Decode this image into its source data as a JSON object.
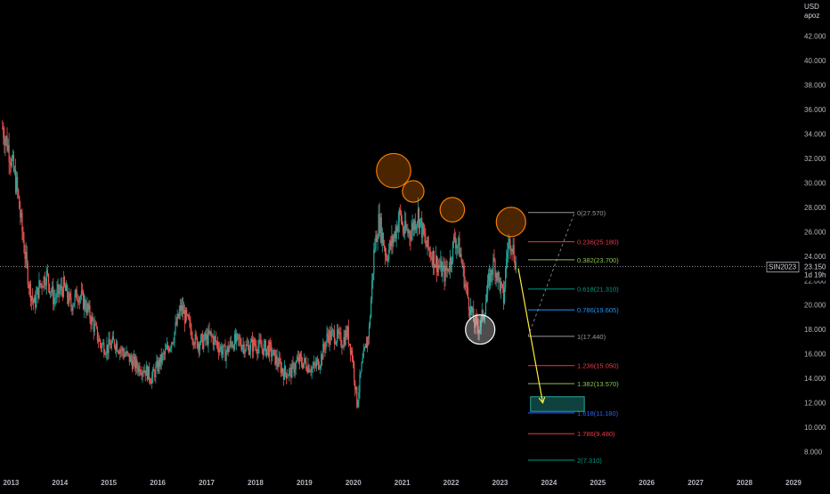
{
  "header": {
    "currency": "USD",
    "unit": "apoz"
  },
  "chart_data": {
    "type": "candlestick",
    "symbol": "SIN2023",
    "last_price": "23.150",
    "countdown": "1d 19h",
    "x_ticks": [
      "2013",
      "2014",
      "2015",
      "2016",
      "2017",
      "2018",
      "2019",
      "2020",
      "2021",
      "2022",
      "2023",
      "2024",
      "2025",
      "2026",
      "2027",
      "2028",
      "2029"
    ],
    "y_ticks": [
      "8.000",
      "10.000",
      "12.000",
      "14.000",
      "16.000",
      "18.000",
      "20.000",
      "22.000",
      "24.000",
      "26.000",
      "28.000",
      "30.000",
      "32.000",
      "34.000",
      "36.000",
      "38.000",
      "40.000",
      "42.000"
    ],
    "ylim": [
      6.0,
      43.5
    ],
    "xlim": [
      2012.9,
      2029.2
    ],
    "grid": false,
    "price_path": [
      [
        2012.95,
        34.5
      ],
      [
        2013.1,
        32.5
      ],
      [
        2013.25,
        29.5
      ],
      [
        2013.4,
        24.5
      ],
      [
        2013.5,
        21.5
      ],
      [
        2013.6,
        20.0
      ],
      [
        2013.7,
        21.5
      ],
      [
        2013.85,
        22.5
      ],
      [
        2014.0,
        20.5
      ],
      [
        2014.2,
        21.5
      ],
      [
        2014.35,
        20.0
      ],
      [
        2014.5,
        21.0
      ],
      [
        2014.65,
        20.0
      ],
      [
        2014.8,
        18.5
      ],
      [
        2014.95,
        16.8
      ],
      [
        2015.1,
        16.5
      ],
      [
        2015.25,
        17.0
      ],
      [
        2015.4,
        16.2
      ],
      [
        2015.55,
        15.6
      ],
      [
        2015.7,
        15.0
      ],
      [
        2015.85,
        14.8
      ],
      [
        2016.0,
        14.0
      ],
      [
        2016.15,
        15.2
      ],
      [
        2016.3,
        16.2
      ],
      [
        2016.45,
        17.5
      ],
      [
        2016.6,
        19.8
      ],
      [
        2016.75,
        18.5
      ],
      [
        2016.9,
        17.0
      ],
      [
        2017.05,
        17.0
      ],
      [
        2017.2,
        17.5
      ],
      [
        2017.35,
        16.8
      ],
      [
        2017.5,
        16.0
      ],
      [
        2017.65,
        17.0
      ],
      [
        2017.8,
        17.0
      ],
      [
        2017.95,
        16.5
      ],
      [
        2018.1,
        16.8
      ],
      [
        2018.25,
        16.5
      ],
      [
        2018.4,
        16.4
      ],
      [
        2018.55,
        15.5
      ],
      [
        2018.7,
        14.5
      ],
      [
        2018.85,
        14.5
      ],
      [
        2019.0,
        15.5
      ],
      [
        2019.15,
        15.2
      ],
      [
        2019.3,
        14.8
      ],
      [
        2019.45,
        15.5
      ],
      [
        2019.6,
        17.5
      ],
      [
        2019.75,
        17.5
      ],
      [
        2019.9,
        17.0
      ],
      [
        2020.0,
        17.8
      ],
      [
        2020.1,
        16.0
      ],
      [
        2020.2,
        12.0
      ],
      [
        2020.3,
        15.0
      ],
      [
        2020.45,
        18.0
      ],
      [
        2020.55,
        24.5
      ],
      [
        2020.65,
        27.0
      ],
      [
        2020.8,
        24.0
      ],
      [
        2020.95,
        25.5
      ],
      [
        2021.08,
        27.5
      ],
      [
        2021.15,
        26.0
      ],
      [
        2021.3,
        26.0
      ],
      [
        2021.45,
        27.5
      ],
      [
        2021.6,
        25.0
      ],
      [
        2021.75,
        24.0
      ],
      [
        2021.9,
        23.0
      ],
      [
        2022.0,
        22.5
      ],
      [
        2022.1,
        23.5
      ],
      [
        2022.2,
        25.5
      ],
      [
        2022.3,
        24.5
      ],
      [
        2022.4,
        22.0
      ],
      [
        2022.5,
        20.0
      ],
      [
        2022.6,
        18.5
      ],
      [
        2022.7,
        18.2
      ],
      [
        2022.8,
        19.5
      ],
      [
        2022.9,
        22.0
      ],
      [
        2023.0,
        23.5
      ],
      [
        2023.1,
        22.0
      ],
      [
        2023.2,
        20.5
      ],
      [
        2023.27,
        24.5
      ],
      [
        2023.35,
        25.5
      ],
      [
        2023.45,
        23.3
      ]
    ],
    "fib_levels": [
      {
        "ratio": "0",
        "price": "27.570",
        "value": 27.57,
        "color": "#9598a1"
      },
      {
        "ratio": "0.236",
        "price": "25.180",
        "value": 25.18,
        "color": "#f23645"
      },
      {
        "ratio": "0.382",
        "price": "23.700",
        "value": 23.7,
        "color": "#8bc34a"
      },
      {
        "ratio": "0.618",
        "price": "21.310",
        "value": 21.31,
        "color": "#089981"
      },
      {
        "ratio": "0.786",
        "price": "19.605",
        "value": 19.605,
        "color": "#2196f3"
      },
      {
        "ratio": "1",
        "price": "17.440",
        "value": 17.44,
        "color": "#9598a1"
      },
      {
        "ratio": "1.236",
        "price": "15.050",
        "value": 15.05,
        "color": "#f23645"
      },
      {
        "ratio": "1.382",
        "price": "13.570",
        "value": 13.57,
        "color": "#8bc34a"
      },
      {
        "ratio": "1.618",
        "price": "11.180",
        "value": 11.18,
        "color": "#2962ff"
      },
      {
        "ratio": "1.786",
        "price": "9.480",
        "value": 9.48,
        "color": "#f23645"
      },
      {
        "ratio": "2",
        "price": "7.310",
        "value": 7.31,
        "color": "#089981"
      }
    ],
    "fib_x_range": [
      2023.7,
      2024.65
    ],
    "fib_anchor_line": [
      [
        2023.7,
        17.44
      ],
      [
        2024.65,
        27.57
      ]
    ],
    "highlight_circles": [
      {
        "x": 2020.95,
        "y": 31.0,
        "r": 0.35,
        "color": "#f57c00"
      },
      {
        "x": 2021.35,
        "y": 29.3,
        "r": 0.22,
        "color": "#f57c00"
      },
      {
        "x": 2022.15,
        "y": 27.8,
        "r": 0.25,
        "color": "#f57c00"
      },
      {
        "x": 2023.35,
        "y": 26.8,
        "r": 0.3,
        "color": "#f57c00"
      },
      {
        "x": 2022.72,
        "y": 18.0,
        "r": 0.3,
        "color": "#ffffff"
      }
    ],
    "projection_arrow": {
      "from": [
        2023.5,
        23.0
      ],
      "to": [
        2024.0,
        12.0
      ],
      "color": "#ffeb3b"
    },
    "target_zone": {
      "x": [
        2023.75,
        2024.85
      ],
      "y": [
        11.3,
        12.5
      ],
      "color": "#26a69a"
    },
    "colors": {
      "up": "#26a69a",
      "down": "#ef5350",
      "last_price_line": "#b2b5be"
    }
  }
}
